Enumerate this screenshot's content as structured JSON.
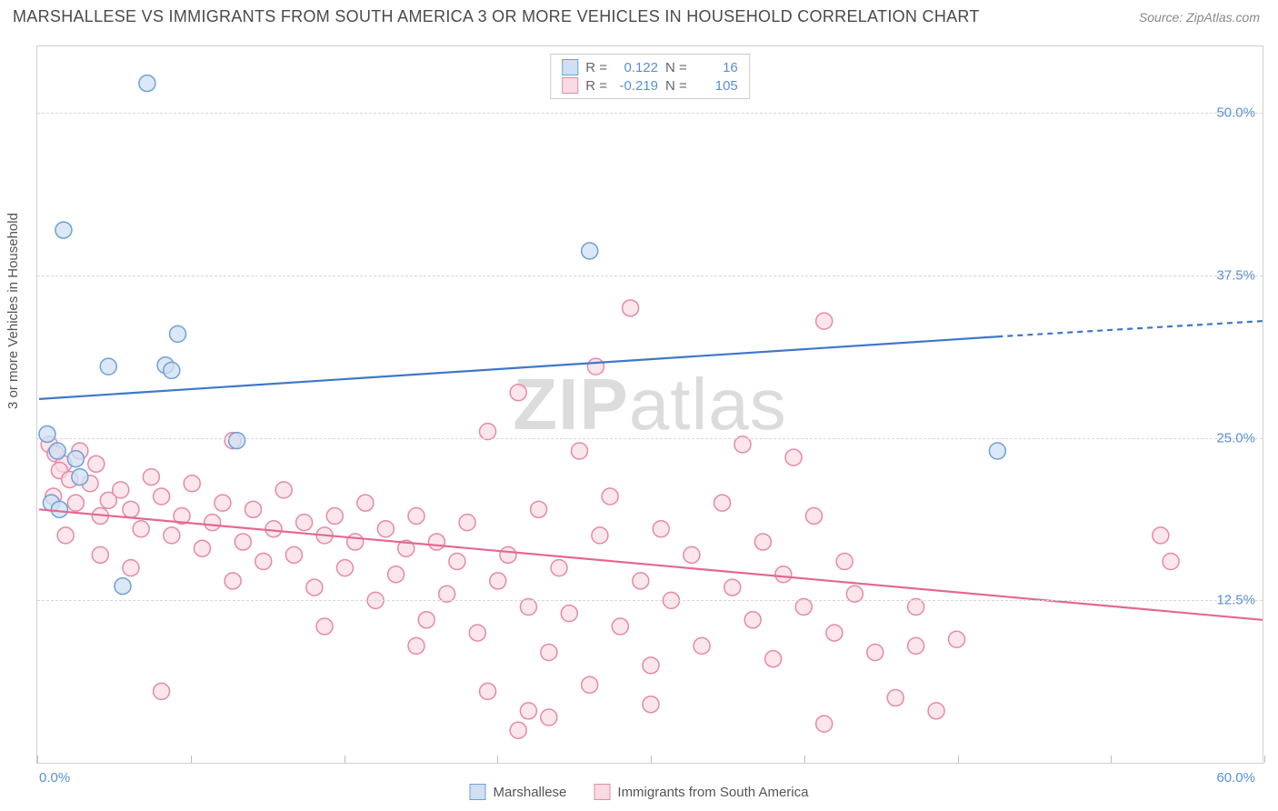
{
  "header": {
    "title": "MARSHALLESE VS IMMIGRANTS FROM SOUTH AMERICA 3 OR MORE VEHICLES IN HOUSEHOLD CORRELATION CHART",
    "source": "Source: ZipAtlas.com"
  },
  "chart": {
    "type": "scatter",
    "y_label": "3 or more Vehicles in Household",
    "watermark": "ZIPatlas",
    "background_color": "#ffffff",
    "border_color": "#d0d0d0",
    "grid_color": "#d8d8d8",
    "tick_color": "#5a8fd4",
    "xlim": [
      0,
      60
    ],
    "ylim": [
      0,
      55
    ],
    "x_axis": {
      "min_label": "0.0%",
      "max_label": "60.0%",
      "tick_positions_pct": [
        0,
        12.5,
        25,
        37.5,
        50,
        62.5,
        75,
        87.5,
        100
      ]
    },
    "y_ticks": [
      {
        "value": 50.0,
        "label": "50.0%"
      },
      {
        "value": 37.5,
        "label": "37.5%"
      },
      {
        "value": 25.0,
        "label": "25.0%"
      },
      {
        "value": 12.5,
        "label": "12.5%"
      }
    ],
    "stats": [
      {
        "r_label": "R =",
        "r_value": "0.122",
        "n_label": "N =",
        "n_value": "16",
        "swatch_fill": "#cfe0f4",
        "swatch_border": "#6f9fd8"
      },
      {
        "r_label": "R =",
        "r_value": "-0.219",
        "n_label": "N =",
        "n_value": "105",
        "swatch_fill": "#fadbe3",
        "swatch_border": "#e68aa5"
      }
    ],
    "bottom_legend": [
      {
        "label": "Marshallese",
        "swatch_fill": "#cfe0f4",
        "swatch_border": "#6f9fd8"
      },
      {
        "label": "Immigrants from South America",
        "swatch_fill": "#fadbe3",
        "swatch_border": "#e68aa5"
      }
    ],
    "series": [
      {
        "name": "Marshallese",
        "marker_fill": "#cfe0f4",
        "marker_stroke": "#6f9fd8",
        "marker_opacity": 0.75,
        "marker_radius": 9,
        "trend_color": "#3f78c9",
        "trend_width": 2.2,
        "trend_solid": {
          "x1": 0,
          "y1": 28.0,
          "x2": 47,
          "y2": 32.8
        },
        "trend_dashed": {
          "x1": 47,
          "y1": 32.8,
          "x2": 60,
          "y2": 34.0
        },
        "points": [
          {
            "x": 5.3,
            "y": 52.3
          },
          {
            "x": 1.2,
            "y": 41.0
          },
          {
            "x": 27.0,
            "y": 39.4
          },
          {
            "x": 6.8,
            "y": 33.0
          },
          {
            "x": 3.4,
            "y": 30.5
          },
          {
            "x": 6.2,
            "y": 30.6
          },
          {
            "x": 6.5,
            "y": 30.2
          },
          {
            "x": 0.4,
            "y": 25.3
          },
          {
            "x": 0.9,
            "y": 24.0
          },
          {
            "x": 1.8,
            "y": 23.4
          },
          {
            "x": 0.6,
            "y": 20.0
          },
          {
            "x": 4.1,
            "y": 13.6
          },
          {
            "x": 47.0,
            "y": 24.0
          },
          {
            "x": 9.7,
            "y": 24.8
          },
          {
            "x": 2.0,
            "y": 22.0
          },
          {
            "x": 1.0,
            "y": 19.5
          }
        ]
      },
      {
        "name": "Immigrants from South America",
        "marker_fill": "#fadbe3",
        "marker_stroke": "#e68aa5",
        "marker_opacity": 0.7,
        "marker_radius": 9,
        "trend_color": "#e4698f",
        "trend_width": 2.2,
        "trend_solid": {
          "x1": 0,
          "y1": 19.5,
          "x2": 60,
          "y2": 11.0
        },
        "trend_dashed": null,
        "points": [
          {
            "x": 0.5,
            "y": 24.5
          },
          {
            "x": 0.8,
            "y": 23.8
          },
          {
            "x": 1.2,
            "y": 23.0
          },
          {
            "x": 1.0,
            "y": 22.5
          },
          {
            "x": 1.5,
            "y": 21.8
          },
          {
            "x": 0.7,
            "y": 20.5
          },
          {
            "x": 1.8,
            "y": 20.0
          },
          {
            "x": 2.5,
            "y": 21.5
          },
          {
            "x": 3.4,
            "y": 20.2
          },
          {
            "x": 2.0,
            "y": 24.0
          },
          {
            "x": 2.8,
            "y": 23.0
          },
          {
            "x": 3.0,
            "y": 19.0
          },
          {
            "x": 4.0,
            "y": 21.0
          },
          {
            "x": 4.5,
            "y": 19.5
          },
          {
            "x": 5.0,
            "y": 18.0
          },
          {
            "x": 5.5,
            "y": 22.0
          },
          {
            "x": 6.0,
            "y": 20.5
          },
          {
            "x": 6.5,
            "y": 17.5
          },
          {
            "x": 7.0,
            "y": 19.0
          },
          {
            "x": 7.5,
            "y": 21.5
          },
          {
            "x": 8.0,
            "y": 16.5
          },
          {
            "x": 8.5,
            "y": 18.5
          },
          {
            "x": 9.0,
            "y": 20.0
          },
          {
            "x": 9.5,
            "y": 14.0
          },
          {
            "x": 10.0,
            "y": 17.0
          },
          {
            "x": 10.5,
            "y": 19.5
          },
          {
            "x": 11.0,
            "y": 15.5
          },
          {
            "x": 11.5,
            "y": 18.0
          },
          {
            "x": 12.0,
            "y": 21.0
          },
          {
            "x": 12.5,
            "y": 16.0
          },
          {
            "x": 13.0,
            "y": 18.5
          },
          {
            "x": 13.5,
            "y": 13.5
          },
          {
            "x": 14.0,
            "y": 17.5
          },
          {
            "x": 14.5,
            "y": 19.0
          },
          {
            "x": 15.0,
            "y": 15.0
          },
          {
            "x": 15.5,
            "y": 17.0
          },
          {
            "x": 16.0,
            "y": 20.0
          },
          {
            "x": 16.5,
            "y": 12.5
          },
          {
            "x": 17.0,
            "y": 18.0
          },
          {
            "x": 17.5,
            "y": 14.5
          },
          {
            "x": 18.0,
            "y": 16.5
          },
          {
            "x": 18.5,
            "y": 19.0
          },
          {
            "x": 19.0,
            "y": 11.0
          },
          {
            "x": 19.5,
            "y": 17.0
          },
          {
            "x": 20.0,
            "y": 13.0
          },
          {
            "x": 20.5,
            "y": 15.5
          },
          {
            "x": 21.0,
            "y": 18.5
          },
          {
            "x": 21.5,
            "y": 10.0
          },
          {
            "x": 22.0,
            "y": 25.5
          },
          {
            "x": 22.5,
            "y": 14.0
          },
          {
            "x": 23.0,
            "y": 16.0
          },
          {
            "x": 23.5,
            "y": 28.5
          },
          {
            "x": 24.0,
            "y": 12.0
          },
          {
            "x": 24.5,
            "y": 19.5
          },
          {
            "x": 25.0,
            "y": 8.5
          },
          {
            "x": 25.5,
            "y": 15.0
          },
          {
            "x": 26.0,
            "y": 11.5
          },
          {
            "x": 26.5,
            "y": 24.0
          },
          {
            "x": 27.0,
            "y": 6.0
          },
          {
            "x": 27.5,
            "y": 17.5
          },
          {
            "x": 28.0,
            "y": 20.5
          },
          {
            "x": 28.5,
            "y": 10.5
          },
          {
            "x": 29.0,
            "y": 35.0
          },
          {
            "x": 29.5,
            "y": 14.0
          },
          {
            "x": 30.0,
            "y": 7.5
          },
          {
            "x": 30.5,
            "y": 18.0
          },
          {
            "x": 31.0,
            "y": 12.5
          },
          {
            "x": 24.0,
            "y": 4.0
          },
          {
            "x": 32.0,
            "y": 16.0
          },
          {
            "x": 32.5,
            "y": 9.0
          },
          {
            "x": 27.3,
            "y": 30.5
          },
          {
            "x": 33.5,
            "y": 20.0
          },
          {
            "x": 34.0,
            "y": 13.5
          },
          {
            "x": 34.5,
            "y": 24.5
          },
          {
            "x": 35.0,
            "y": 11.0
          },
          {
            "x": 35.5,
            "y": 17.0
          },
          {
            "x": 36.0,
            "y": 8.0
          },
          {
            "x": 36.5,
            "y": 14.5
          },
          {
            "x": 37.0,
            "y": 23.5
          },
          {
            "x": 37.5,
            "y": 12.0
          },
          {
            "x": 38.0,
            "y": 19.0
          },
          {
            "x": 38.5,
            "y": 34.0
          },
          {
            "x": 39.0,
            "y": 10.0
          },
          {
            "x": 39.5,
            "y": 15.5
          },
          {
            "x": 40.0,
            "y": 13.0
          },
          {
            "x": 41.0,
            "y": 8.5
          },
          {
            "x": 42.0,
            "y": 5.0
          },
          {
            "x": 43.0,
            "y": 12.0
          },
          {
            "x": 45.0,
            "y": 9.5
          },
          {
            "x": 23.5,
            "y": 2.5
          },
          {
            "x": 25.0,
            "y": 3.5
          },
          {
            "x": 22.0,
            "y": 5.5
          },
          {
            "x": 6.0,
            "y": 5.5
          },
          {
            "x": 38.5,
            "y": 3.0
          },
          {
            "x": 44.0,
            "y": 4.0
          },
          {
            "x": 43.0,
            "y": 9.0
          },
          {
            "x": 55.0,
            "y": 17.5
          },
          {
            "x": 55.5,
            "y": 15.5
          },
          {
            "x": 9.5,
            "y": 24.8
          },
          {
            "x": 1.3,
            "y": 17.5
          },
          {
            "x": 3.0,
            "y": 16.0
          },
          {
            "x": 4.5,
            "y": 15.0
          },
          {
            "x": 14.0,
            "y": 10.5
          },
          {
            "x": 18.5,
            "y": 9.0
          },
          {
            "x": 30.0,
            "y": 4.5
          }
        ]
      }
    ]
  }
}
